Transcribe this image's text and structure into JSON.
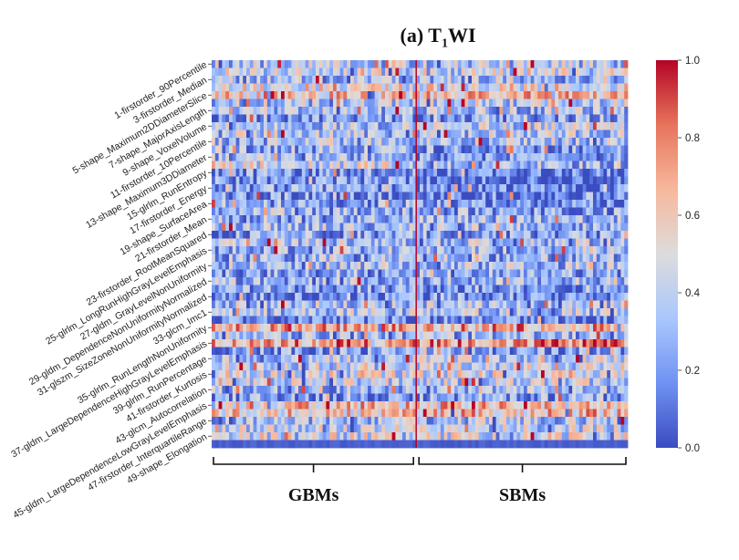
{
  "chart_data": {
    "type": "heatmap",
    "title_prefix": "(a) T",
    "title_subscript": "1",
    "title_suffix": "WI",
    "row_labels": [
      "1-firstorder_90Percentile",
      "3-firstorder_Median",
      "5-shape_Maximum2DDiameterSlice",
      "7-shape_MajorAxisLength",
      "9-shape_VoxelVolume",
      "11-firstorder_10Percentile",
      "13-shape_Maximum3DDiameter",
      "15-glrlm_RunEntropy",
      "17-firstorder_Energy",
      "19-shape_SurfaceArea",
      "21-firstorder_Mean",
      "23-firstorder_RootMeanSquared",
      "25-glrlm_LongRunHighGrayLevelEmphasis",
      "27-gldm_GrayLevelNonUniformity",
      "29-gldm_DependenceNonUniformityNormalized",
      "31-glszm_SizeZoneNonUniformityNormalized",
      "33-glcm_Imc1",
      "35-glrlm_RunLengthNonUniformity",
      "37-gldm_LargeDependenceHighGrayLevelEmphasis",
      "39-glrlm_RunPercentage",
      "41-firstorder_Kurtosis",
      "43-glcm_Autocorrelation",
      "45-gldm_LargeDependenceLowGrayLevelEmphasis",
      "47-firstorder_InterquartileRange",
      "49-shape_Elongation"
    ],
    "n_rows": 50,
    "n_cols": 120,
    "group_split_col": 59,
    "groups": [
      "GBMs",
      "SBMs"
    ],
    "colorbar": {
      "min": 0.0,
      "max": 1.0,
      "ticks": [
        "0.0",
        "0.2",
        "0.4",
        "0.6",
        "0.8",
        "1.0"
      ],
      "colormap": "coolwarm",
      "stops": [
        "#3b4cc0",
        "#6f92f3",
        "#aac7fd",
        "#dddcdc",
        "#f7b89c",
        "#e7745b",
        "#b40426"
      ]
    },
    "row_means": [
      0.35,
      0.42,
      0.3,
      0.5,
      0.62,
      0.35,
      0.32,
      0.25,
      0.34,
      0.36,
      0.33,
      0.28,
      0.3,
      0.42,
      0.2,
      0.18,
      0.22,
      0.2,
      0.25,
      0.3,
      0.28,
      0.32,
      0.22,
      0.35,
      0.3,
      0.28,
      0.32,
      0.25,
      0.3,
      0.22,
      0.2,
      0.35,
      0.35,
      0.15,
      0.7,
      0.28,
      0.72,
      0.2,
      0.35,
      0.42,
      0.45,
      0.4,
      0.3,
      0.25,
      0.62,
      0.58,
      0.33,
      0.4,
      0.45,
      0.3
    ],
    "row_biases": [
      0.0,
      0.0,
      0.0,
      0.0,
      0.0,
      0.05,
      0.0,
      0.0,
      0.05,
      0.0,
      0.0,
      -0.08,
      -0.1,
      -0.12,
      -0.1,
      -0.12,
      -0.1,
      -0.1,
      -0.08,
      -0.05,
      0.0,
      0.0,
      0.0,
      0.0,
      0.0,
      0.0,
      0.0,
      0.0,
      0.0,
      0.0,
      0.0,
      0.0,
      0.0,
      0.0,
      0.0,
      0.0,
      0.05,
      0.0,
      0.05,
      0.0,
      0.0,
      0.0,
      0.0,
      0.0,
      0.05,
      0.05,
      0.0,
      0.0,
      0.0,
      0.0
    ],
    "seed": 20241
  }
}
